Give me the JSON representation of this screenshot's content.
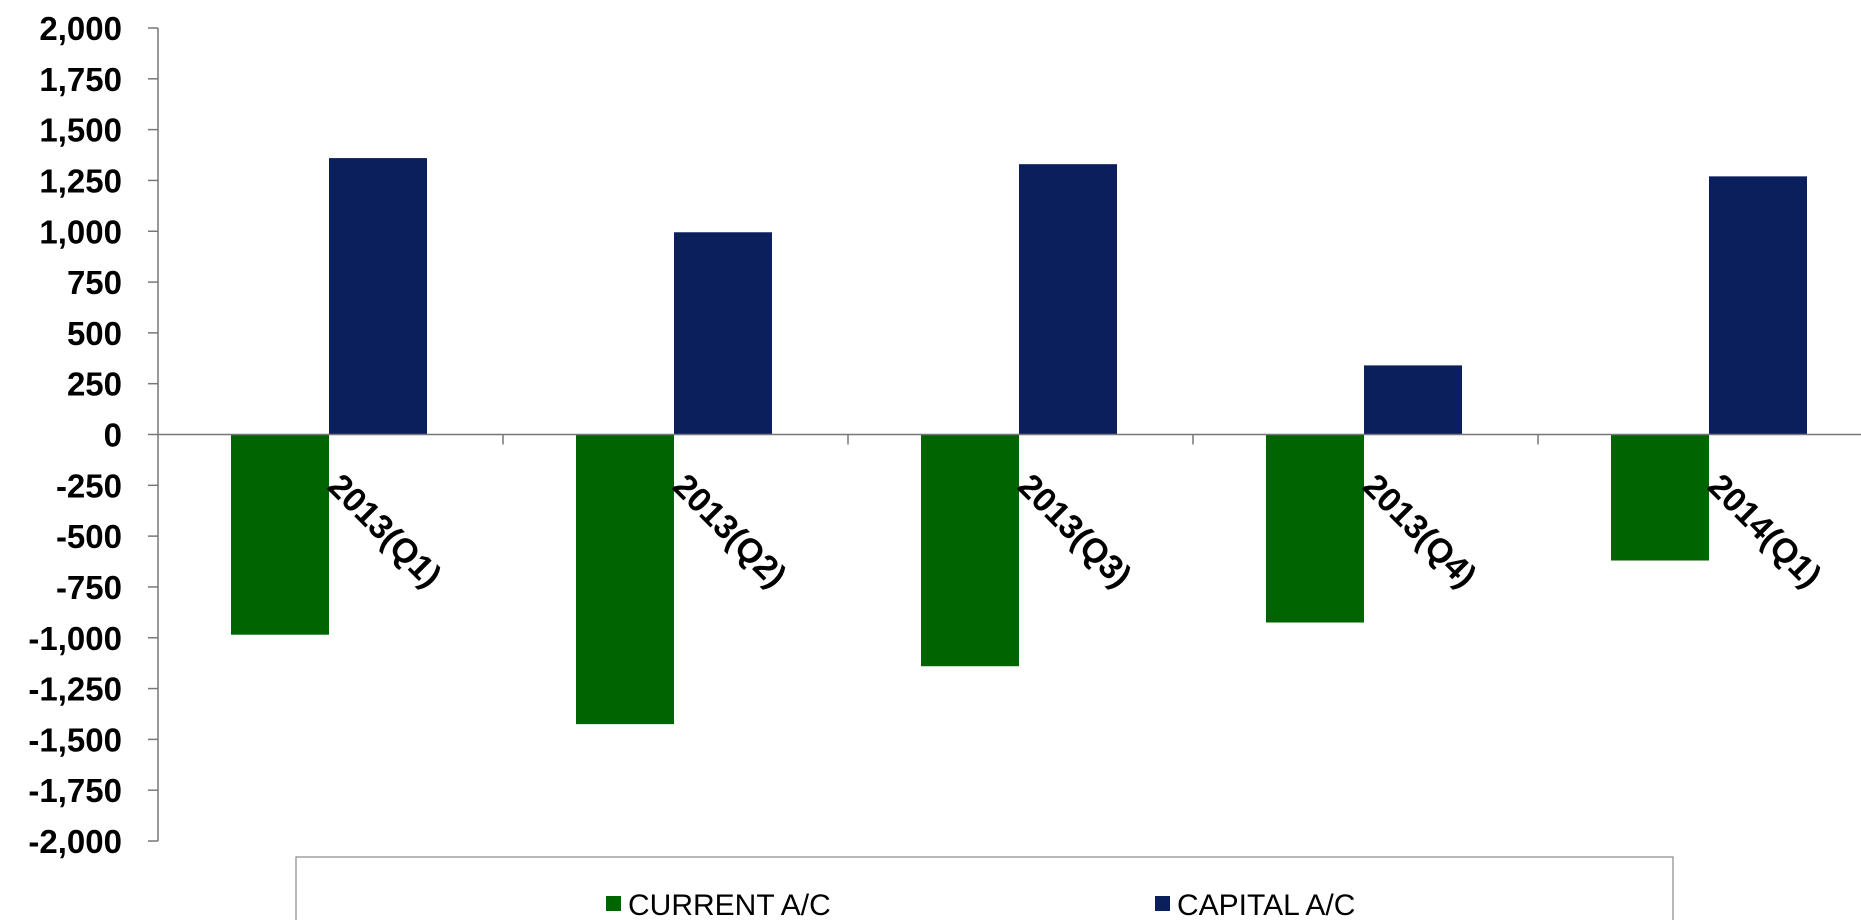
{
  "chart_data": {
    "type": "bar",
    "categories": [
      "2013(Q1)",
      "2013(Q2)",
      "2013(Q3)",
      "2013(Q4)",
      "2014(Q1)"
    ],
    "series": [
      {
        "name": "CURRENT A/C",
        "color": "#006400",
        "values": [
          -985,
          -1425,
          -1140,
          -925,
          -620
        ]
      },
      {
        "name": "CAPITAL A/C",
        "color": "#0A1F5C",
        "values": [
          1360,
          995,
          1330,
          340,
          1270
        ]
      }
    ],
    "ylim": [
      -2000,
      2000
    ],
    "yticks": [
      2000,
      1750,
      1500,
      1250,
      1000,
      750,
      500,
      250,
      0,
      -250,
      -500,
      -750,
      -1000,
      -1250,
      -1500,
      -1750,
      -2000
    ],
    "ytick_labels": [
      "2,000",
      "1,750",
      "1,500",
      "1,250",
      "1,000",
      "750",
      "500",
      "250",
      "0",
      "-250",
      "-500",
      "-750",
      "-1,000",
      "-1,250",
      "-1,500",
      "-1,750",
      "-2,000"
    ],
    "grid": false,
    "legend": "bottom"
  }
}
